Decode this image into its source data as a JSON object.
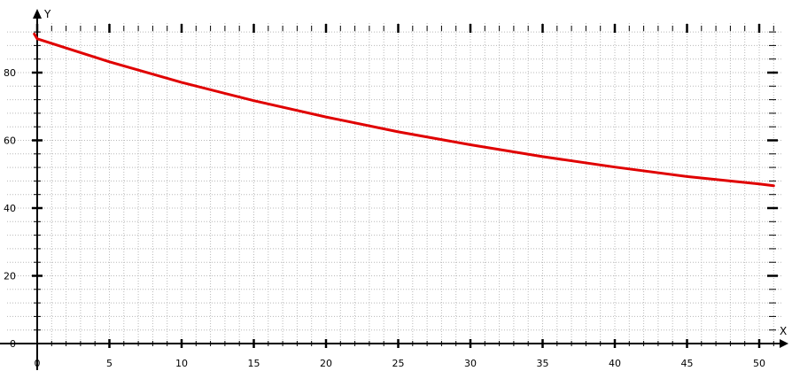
{
  "chart_data": {
    "type": "line",
    "title": "",
    "xlabel": "X",
    "ylabel": "Y",
    "xlim": [
      -0.2,
      51.5
    ],
    "ylim": [
      0,
      99
    ],
    "x_ticks": [
      0,
      5,
      10,
      15,
      20,
      25,
      30,
      35,
      40,
      45,
      50
    ],
    "y_ticks": [
      0,
      20,
      40,
      60,
      80
    ],
    "x_tick_labels": [
      "0",
      "5",
      "10",
      "15",
      "20",
      "25",
      "30",
      "35",
      "40",
      "45",
      "50"
    ],
    "y_tick_labels": [
      "0",
      "20",
      "40",
      "60",
      "80"
    ],
    "x_minor_step": 1,
    "y_minor_step": 4,
    "grid": true,
    "grid_style": "dotted",
    "series": [
      {
        "color": "#e00000",
        "x": [
          -0.2,
          0,
          5,
          10,
          15,
          20,
          25,
          30,
          35,
          40,
          45,
          50,
          51
        ],
        "y": [
          91.4,
          90.0,
          83.2,
          77.1,
          71.7,
          66.9,
          62.5,
          58.7,
          55.2,
          52.1,
          49.3,
          47.1,
          46.6
        ]
      }
    ]
  }
}
